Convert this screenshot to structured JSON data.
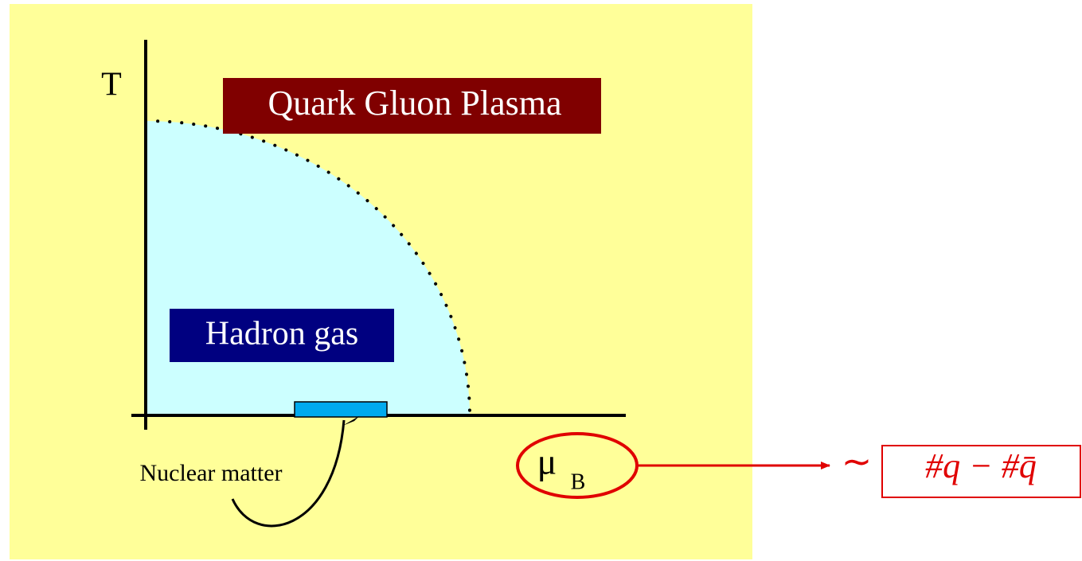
{
  "axis_y_label": "T",
  "axis_x_label": "μ",
  "axis_x_subscript": "B",
  "regions": [
    {
      "label": "Quark Gluon Plasma"
    },
    {
      "label": "Hadron gas"
    }
  ],
  "annotation": "Nuclear matter",
  "relation": "∼",
  "formula": "#q − #q̄"
}
